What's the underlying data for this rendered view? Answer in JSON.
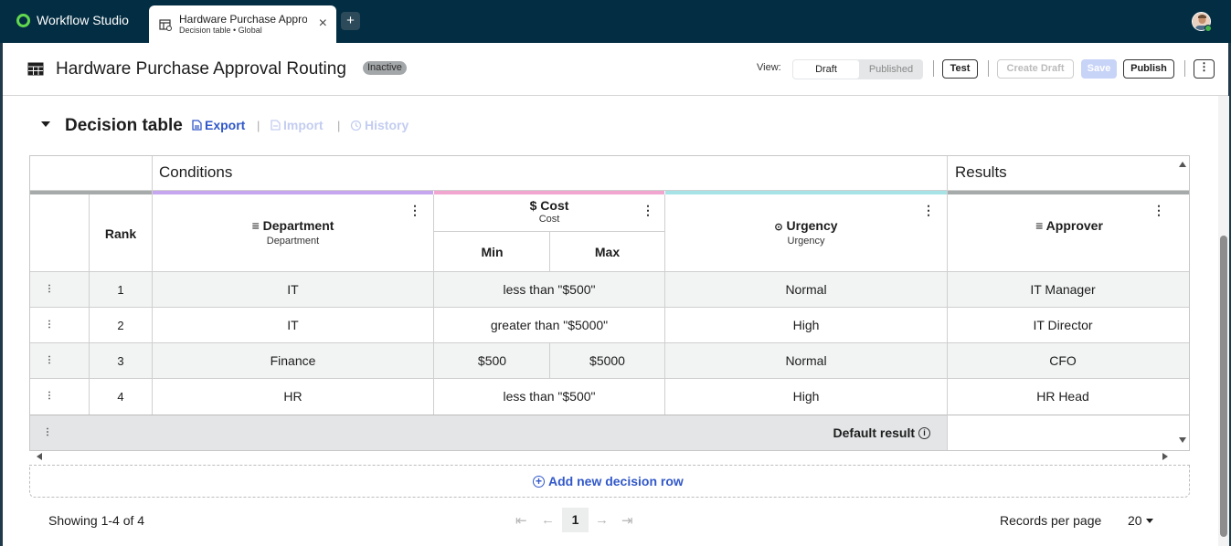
{
  "app": {
    "name": "Workflow Studio"
  },
  "tab": {
    "title": "Hardware Purchase Approv",
    "subtitle": "Decision table • Global",
    "close": "×"
  },
  "new_tab": "+",
  "header": {
    "title": "Hardware Purchase Approval Routing",
    "status": "Inactive",
    "view_label": "View:",
    "view_draft": "Draft",
    "view_published": "Published",
    "test": "Test",
    "create_draft": "Create Draft",
    "save": "Save",
    "publish": "Publish",
    "more": "⋮"
  },
  "section": {
    "title": "Decision table",
    "export": "Export",
    "import": "Import",
    "history": "History",
    "sep": "|"
  },
  "table": {
    "conditions_label": "Conditions",
    "results_label": "Results",
    "rank_header": "Rank",
    "columns": {
      "department": {
        "title": "Department",
        "sub": "Department"
      },
      "cost": {
        "title": "Cost",
        "sub": "Cost",
        "min": "Min",
        "max": "Max"
      },
      "urgency": {
        "title": "Urgency",
        "sub": "Urgency"
      },
      "approver": {
        "title": "Approver"
      }
    },
    "rows": [
      {
        "rank": "1",
        "department": "IT",
        "cost": "less than \"$500\"",
        "urgency": "Normal",
        "approver": "IT Manager"
      },
      {
        "rank": "2",
        "department": "IT",
        "cost": "greater than \"$5000\"",
        "urgency": "High",
        "approver": "IT Director"
      },
      {
        "rank": "3",
        "department": "Finance",
        "cost_min": "$500",
        "cost_max": "$5000",
        "urgency": "Normal",
        "approver": "CFO"
      },
      {
        "rank": "4",
        "department": "HR",
        "cost": "less than \"$500\"",
        "urgency": "High",
        "approver": "HR Head"
      }
    ],
    "default_result": "Default result",
    "info": "i",
    "handle": "⋮",
    "kebab": "⋮",
    "add_row": "Add new decision row",
    "add_plus": "+"
  },
  "colors": {
    "rank_bar": "#a7aaab",
    "department_bar": "#c6a6ef",
    "cost_bar": "#f1a6cf",
    "urgency_bar": "#a6e3e6",
    "approver_bar": "#a7aaab"
  },
  "footer": {
    "showing": "Showing 1-4 of 4",
    "page": "1",
    "records_per_page": "Records per page",
    "per_page_value": "20"
  },
  "pager": {
    "first": "⇤",
    "prev": "←",
    "next": "→",
    "last": "⇥"
  }
}
